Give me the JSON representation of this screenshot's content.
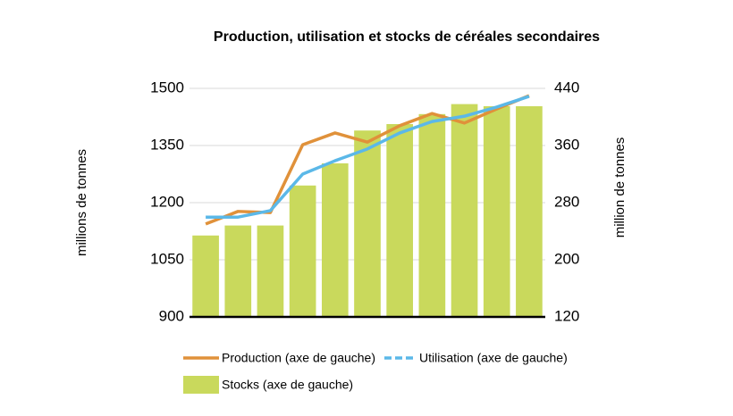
{
  "chart_data": {
    "type": "combo",
    "title": "Production, utilisation et stocks de céréales secondaires",
    "ylabel": "millions de tonnes",
    "y2label": "million de tonnes",
    "categories": [
      null,
      null,
      null,
      null,
      null,
      null,
      null,
      null,
      null,
      null,
      null
    ],
    "ylim": [
      900,
      1500
    ],
    "yticks": [
      900,
      1050,
      1200,
      1350,
      1500
    ],
    "y2lim": [
      120,
      440
    ],
    "y2ticks": [
      120,
      200,
      280,
      360,
      440
    ],
    "grid": true,
    "series": [
      {
        "name": "Stocks (axe de gauche)",
        "type": "bar",
        "axis": "y2",
        "color": "#c9d95c",
        "values": [
          234,
          248,
          248,
          304,
          335,
          381,
          390,
          404,
          418,
          415,
          415
        ]
      },
      {
        "name": "Production (axe de gauche)",
        "type": "line",
        "color": "#e0913a",
        "values": [
          1144,
          1177,
          1174,
          1352,
          1383,
          1359,
          1402,
          1434,
          1409,
          1446,
          1481
        ]
      },
      {
        "name": "Utilisation (axe de gauche)",
        "type": "line",
        "color": "#5bb8e8",
        "legend_dash": true,
        "values": [
          1162,
          1162,
          1179,
          1275,
          1310,
          1341,
          1383,
          1413,
          1427,
          1451,
          1479
        ]
      }
    ]
  }
}
